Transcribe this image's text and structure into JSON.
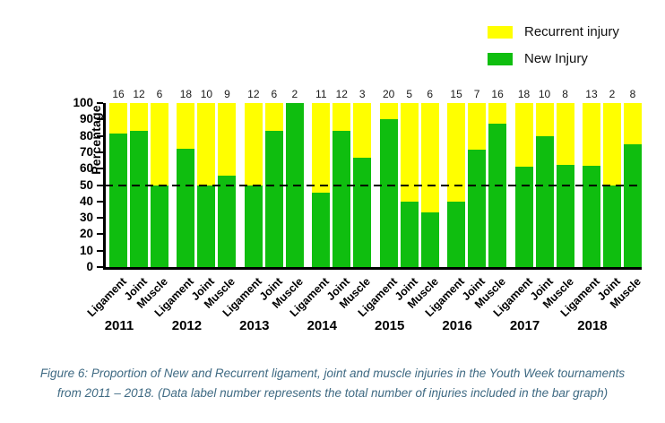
{
  "legend": {
    "items": [
      {
        "key": "recurrent",
        "label": "Recurrent injury",
        "color": "#FFFF00"
      },
      {
        "key": "new",
        "label": "New Injury",
        "color": "#0FBE0F"
      }
    ]
  },
  "colors": {
    "new_injury": "#0FBE0F",
    "recurrent_injury": "#FFFF00",
    "axis": "#000000",
    "caption_text": "#3F6A83"
  },
  "chart_data": {
    "type": "bar",
    "stacked": true,
    "orientation": "vertical",
    "title": "",
    "ylabel": "Percentage",
    "xlabel": "",
    "ylim": [
      0,
      100
    ],
    "y_ticks": [
      0,
      10,
      20,
      30,
      40,
      50,
      60,
      70,
      80,
      90,
      100
    ],
    "reference_line_pct": 50,
    "legend_position": "top-right",
    "grid": false,
    "categories_per_group": [
      "Ligament",
      "Joint",
      "Muscle"
    ],
    "series_note": "new_pct = green lower segment (New Injury), recurrent_pct = yellow upper segment (Recurrent injury); total = data label above bar",
    "groups": [
      {
        "year": "2011",
        "bars": [
          {
            "category": "Ligament",
            "total": 16,
            "new_pct": 81.3,
            "recurrent_pct": 18.7
          },
          {
            "category": "Joint",
            "total": 12,
            "new_pct": 83.3,
            "recurrent_pct": 16.7
          },
          {
            "category": "Muscle",
            "total": 6,
            "new_pct": 50.0,
            "recurrent_pct": 50.0
          }
        ]
      },
      {
        "year": "2012",
        "bars": [
          {
            "category": "Ligament",
            "total": 18,
            "new_pct": 72.2,
            "recurrent_pct": 27.8
          },
          {
            "category": "Joint",
            "total": 10,
            "new_pct": 50.0,
            "recurrent_pct": 50.0
          },
          {
            "category": "Muscle",
            "total": 9,
            "new_pct": 55.6,
            "recurrent_pct": 44.4
          }
        ]
      },
      {
        "year": "2013",
        "bars": [
          {
            "category": "Ligament",
            "total": 12,
            "new_pct": 50.0,
            "recurrent_pct": 50.0
          },
          {
            "category": "Joint",
            "total": 6,
            "new_pct": 83.3,
            "recurrent_pct": 16.7
          },
          {
            "category": "Muscle",
            "total": 2,
            "new_pct": 100.0,
            "recurrent_pct": 0.0
          }
        ]
      },
      {
        "year": "2014",
        "bars": [
          {
            "category": "Ligament",
            "total": 11,
            "new_pct": 45.5,
            "recurrent_pct": 54.5
          },
          {
            "category": "Joint",
            "total": 12,
            "new_pct": 83.3,
            "recurrent_pct": 16.7
          },
          {
            "category": "Muscle",
            "total": 3,
            "new_pct": 66.7,
            "recurrent_pct": 33.3
          }
        ]
      },
      {
        "year": "2015",
        "bars": [
          {
            "category": "Ligament",
            "total": 20,
            "new_pct": 90.0,
            "recurrent_pct": 10.0
          },
          {
            "category": "Joint",
            "total": 5,
            "new_pct": 40.0,
            "recurrent_pct": 60.0
          },
          {
            "category": "Muscle",
            "total": 6,
            "new_pct": 33.3,
            "recurrent_pct": 66.7
          }
        ]
      },
      {
        "year": "2016",
        "bars": [
          {
            "category": "Ligament",
            "total": 15,
            "new_pct": 40.0,
            "recurrent_pct": 60.0
          },
          {
            "category": "Joint",
            "total": 7,
            "new_pct": 71.4,
            "recurrent_pct": 28.6
          },
          {
            "category": "Muscle",
            "total": 16,
            "new_pct": 87.5,
            "recurrent_pct": 12.5
          }
        ]
      },
      {
        "year": "2017",
        "bars": [
          {
            "category": "Ligament",
            "total": 18,
            "new_pct": 61.1,
            "recurrent_pct": 38.9
          },
          {
            "category": "Joint",
            "total": 10,
            "new_pct": 80.0,
            "recurrent_pct": 20.0
          },
          {
            "category": "Muscle",
            "total": 8,
            "new_pct": 62.5,
            "recurrent_pct": 37.5
          }
        ]
      },
      {
        "year": "2018",
        "bars": [
          {
            "category": "Ligament",
            "total": 13,
            "new_pct": 61.5,
            "recurrent_pct": 38.5
          },
          {
            "category": "Joint",
            "total": 2,
            "new_pct": 50.0,
            "recurrent_pct": 50.0
          },
          {
            "category": "Muscle",
            "total": 8,
            "new_pct": 75.0,
            "recurrent_pct": 25.0
          }
        ]
      }
    ]
  },
  "caption": {
    "line1": "Figure 6: Proportion of New and Recurrent ligament, joint and muscle injuries in the Youth Week tournaments",
    "line2": "from 2011 – 2018. (Data label number represents the total number of injuries included in the bar graph)"
  }
}
